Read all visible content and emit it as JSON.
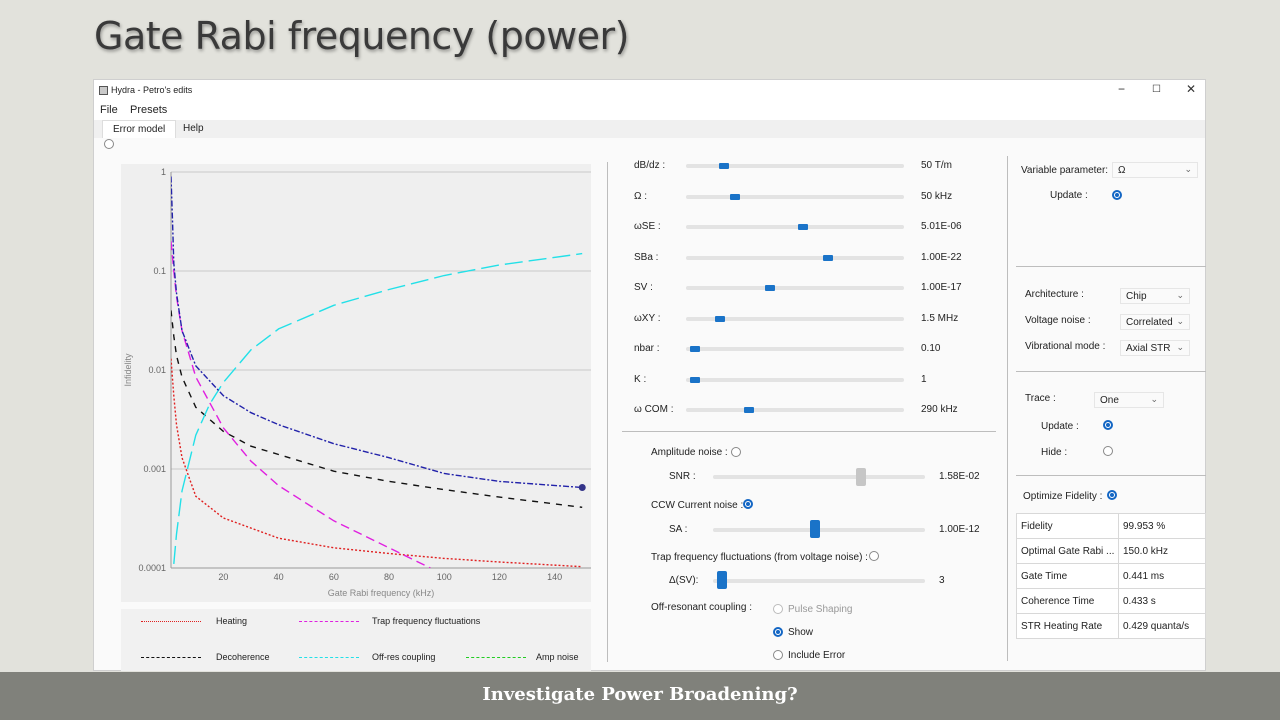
{
  "slide": {
    "title": "Gate Rabi frequency (power)",
    "footer": "Investigate Power Broadening?"
  },
  "window": {
    "title": "Hydra - Petro's edits",
    "controls": {
      "minimize": "−",
      "maximize": "☐",
      "close": "✕"
    }
  },
  "menu": {
    "file": "File",
    "presets": "Presets"
  },
  "tabs": [
    {
      "label": "Error model"
    },
    {
      "label": "Help"
    }
  ],
  "sliders": [
    {
      "label": "dB/dz :",
      "value": "50 T/m",
      "fraction": 0.16
    },
    {
      "label": "Ω :",
      "value": "50 kHz",
      "fraction": 0.21
    },
    {
      "label": "ωSE :",
      "value": "5.01E-06",
      "fraction": 0.54
    },
    {
      "label": "SBa :",
      "value": "1.00E-22",
      "fraction": 0.66
    },
    {
      "label": "SV :",
      "value": "1.00E-17",
      "fraction": 0.38
    },
    {
      "label": "ωXY :",
      "value": "1.5 MHz",
      "fraction": 0.14
    },
    {
      "label": "nbar :",
      "value": "0.10",
      "fraction": 0.02
    },
    {
      "label": "K :",
      "value": "1",
      "fraction": 0.02
    },
    {
      "label": "ω COM :",
      "value": "290 kHz",
      "fraction": 0.28
    }
  ],
  "noise": {
    "amplitude": {
      "label": "Amplitude noise :",
      "checked": false,
      "param": "SNR :",
      "value": "1.58E-02",
      "fraction": 0.71
    },
    "ccw": {
      "label": "CCW Current noise :",
      "checked": true,
      "param": "SA :",
      "value": "1.00E-12",
      "fraction": 0.48
    },
    "trap": {
      "label": "Trap frequency fluctuations (from voltage noise) :",
      "checked": false,
      "param": "Δ(SV):",
      "value": "3",
      "fraction": 0.02
    },
    "offres": {
      "label": "Off-resonant coupling :",
      "options": [
        {
          "label": "Pulse Shaping",
          "checked": false,
          "disabled": true
        },
        {
          "label": "Show",
          "checked": true,
          "disabled": false
        },
        {
          "label": "Include Error",
          "checked": false,
          "disabled": false
        }
      ]
    }
  },
  "right": {
    "variable_label": "Variable parameter:",
    "variable_value": "Ω",
    "update_label": "Update :",
    "architecture_label": "Architecture :",
    "architecture_value": "Chip",
    "voltage_label": "Voltage noise :",
    "voltage_value": "Correlated",
    "vibrational_label": "Vibrational mode :",
    "vibrational_value": "Axial STR",
    "trace_label": "Trace :",
    "trace_value": "One",
    "trace_update_label": "Update :",
    "hide_label": "Hide :",
    "optimize_label": "Optimize Fidelity :",
    "results": [
      {
        "key": "Fidelity",
        "value": "99.953 %"
      },
      {
        "key": "Optimal Gate Rabi ...",
        "value": "150.0 kHz"
      },
      {
        "key": "Gate Time",
        "value": "0.441 ms"
      },
      {
        "key": "Coherence Time",
        "value": "0.433 s"
      },
      {
        "key": "STR Heating Rate",
        "value": "0.429 quanta/s"
      }
    ]
  },
  "chart_data": {
    "type": "line",
    "xlabel": "Gate Rabi frequency (kHz)",
    "ylabel": "Infidelity",
    "xlim": [
      1,
      151
    ],
    "ylim": [
      0.0001,
      1
    ],
    "yscale": "log",
    "xticks": [
      20,
      40,
      60,
      80,
      100,
      120,
      140
    ],
    "yticks": [
      {
        "value": 1,
        "label": "1"
      },
      {
        "value": 0.1,
        "label": "0.1"
      },
      {
        "value": 0.01,
        "label": "0.01"
      },
      {
        "value": 0.001,
        "label": "0.001"
      },
      {
        "value": 0.0001,
        "label": "0.0001"
      }
    ],
    "grid": true,
    "series": [
      {
        "name": "Heating",
        "color": "#e02020",
        "dash": "2,2",
        "x": [
          1,
          2,
          3,
          5,
          10,
          20,
          40,
          60,
          80,
          100,
          120,
          150
        ],
        "y": [
          0.013,
          0.0055,
          0.0028,
          0.0013,
          0.00053,
          0.00032,
          0.0002,
          0.00016,
          0.00014,
          0.000125,
          0.000115,
          0.000103
        ]
      },
      {
        "name": "Trap frequency fluctuations",
        "color": "#e020e0",
        "dash": "9,5",
        "x": [
          1,
          2,
          3,
          5,
          10,
          20,
          30,
          40,
          60,
          80,
          95
        ],
        "y": [
          0.2,
          0.1,
          0.055,
          0.025,
          0.0085,
          0.0026,
          0.0012,
          0.00068,
          0.0003,
          0.00016,
          0.0001
        ]
      },
      {
        "name": "Decoherence",
        "color": "#111111",
        "dash": "6,6",
        "x": [
          1,
          2,
          3,
          5,
          10,
          20,
          30,
          40,
          60,
          80,
          100,
          120,
          150
        ],
        "y": [
          0.04,
          0.022,
          0.014,
          0.0085,
          0.0042,
          0.0024,
          0.0017,
          0.0014,
          0.00095,
          0.00075,
          0.00062,
          0.00052,
          0.00041
        ]
      },
      {
        "name": "Off-res coupling",
        "color": "#22e0e8",
        "dash": "18,6",
        "x": [
          2,
          3,
          5,
          10,
          15,
          20,
          30,
          40,
          60,
          80,
          100,
          120,
          150
        ],
        "y": [
          0.00011,
          0.00022,
          0.0006,
          0.0022,
          0.0045,
          0.0075,
          0.016,
          0.026,
          0.045,
          0.065,
          0.09,
          0.115,
          0.15
        ]
      },
      {
        "name": "Amp noise",
        "color": "#22cc22",
        "dash": "10,3,2,3",
        "x": [],
        "y": []
      },
      {
        "name": "",
        "color": "#2222aa",
        "dash": "6,2,2,2",
        "x": [
          1,
          1.5,
          2,
          3,
          5,
          10,
          20,
          30,
          40,
          60,
          80,
          100,
          120,
          150
        ],
        "y": [
          0.9,
          0.35,
          0.12,
          0.06,
          0.025,
          0.011,
          0.0055,
          0.0037,
          0.0028,
          0.0018,
          0.0013,
          0.0009,
          0.00075,
          0.00065
        ]
      }
    ]
  }
}
